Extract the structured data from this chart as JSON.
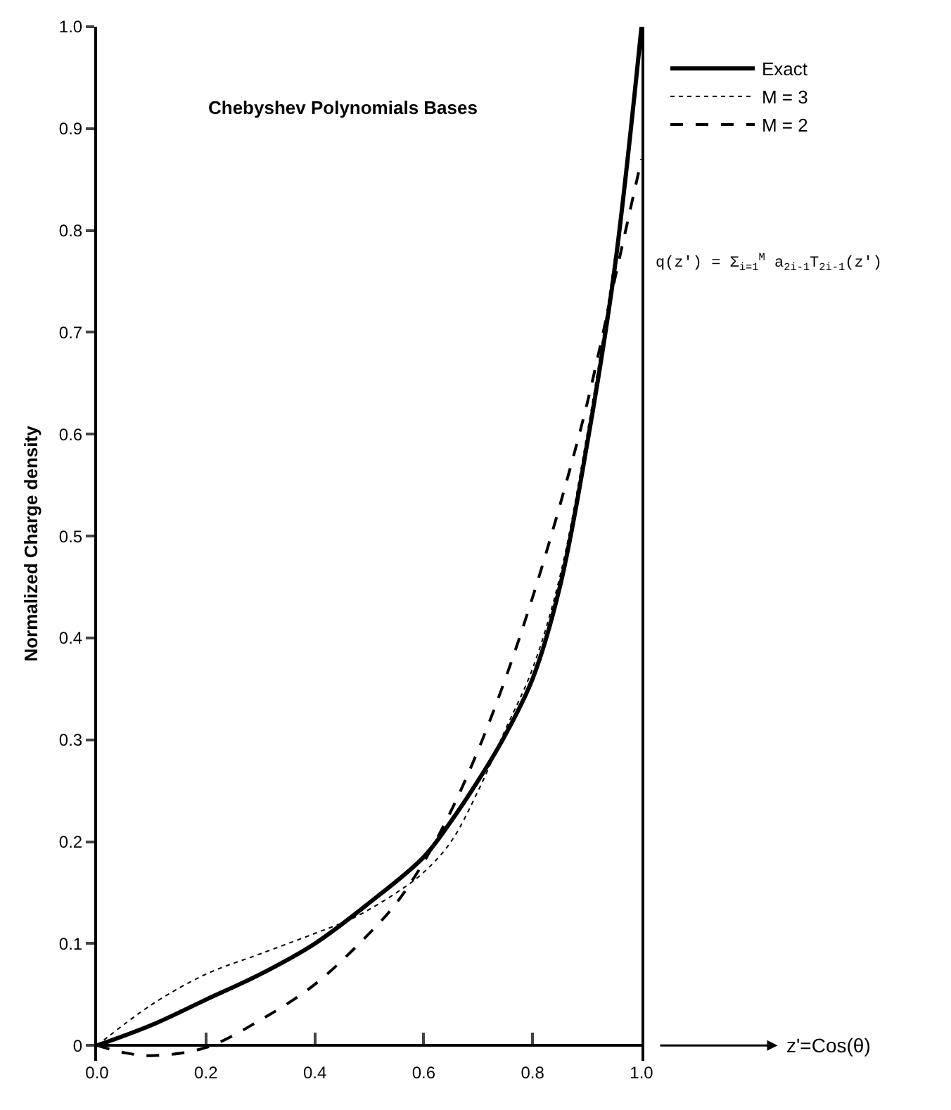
{
  "chart_data": {
    "type": "line",
    "title": "Chebyshev Polynomials Bases",
    "ylabel": "Normalized Charge density",
    "annotations": [
      "q(z') = Σ$_{i=1}$$^{M}$ a$_{2i-1}$T$_{2i-1}$(z')",
      "z'=Cos(θ)"
    ],
    "xlim": [
      0,
      1
    ],
    "xticks": [
      {
        "value": 0,
        "label": "0.0"
      },
      0.2,
      0.4,
      0.6,
      0.8,
      {
        "value": 1,
        "label": "1.0"
      }
    ],
    "ylim": [
      -0.015,
      1
    ],
    "yticks": [
      0,
      0.1,
      0.2,
      0.3,
      0.4,
      0.5,
      0.6,
      0.7,
      0.8,
      0.9,
      {
        "value": 1,
        "label": "1.0"
      }
    ],
    "legend": "top right",
    "marker": "none",
    "series": [
      {
        "name": "Exact",
        "color": "#000000",
        "line_style": "solid",
        "x": [
          0,
          0.1,
          0.2,
          0.3,
          0.4,
          0.5,
          0.6,
          0.65,
          0.7,
          0.75,
          0.8,
          0.85,
          0.9,
          0.95,
          1.0
        ],
        "values": [
          0,
          0.02,
          0.045,
          0.07,
          0.1,
          0.14,
          0.185,
          0.22,
          0.26,
          0.305,
          0.36,
          0.45,
          0.59,
          0.76,
          1.0
        ]
      },
      {
        "name": "M = 3",
        "color": "#000000",
        "line_style": "dotted",
        "x": [
          0,
          0.1,
          0.2,
          0.3,
          0.4,
          0.47,
          0.55,
          0.6,
          0.65,
          0.7,
          0.75,
          0.8,
          0.85,
          0.9,
          0.95,
          1.0
        ],
        "values": [
          0,
          0.04,
          0.07,
          0.09,
          0.11,
          0.125,
          0.15,
          0.17,
          0.2,
          0.25,
          0.31,
          0.37,
          0.46,
          0.6,
          0.77,
          0.99
        ]
      },
      {
        "name": "M = 2",
        "color": "#000000",
        "line_style": "dashed",
        "x": [
          0,
          0.05,
          0.1,
          0.2,
          0.3,
          0.4,
          0.5,
          0.55,
          0.6,
          0.65,
          0.7,
          0.75,
          0.8,
          0.85,
          0.9,
          0.95,
          1.0
        ],
        "values": [
          0,
          -0.007,
          -0.01,
          -0.002,
          0.025,
          0.06,
          0.11,
          0.14,
          0.18,
          0.23,
          0.29,
          0.36,
          0.44,
          0.53,
          0.63,
          0.75,
          0.87
        ]
      }
    ]
  }
}
